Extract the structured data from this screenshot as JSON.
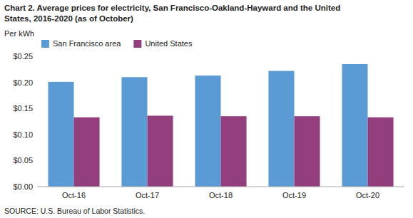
{
  "chart_data": {
    "type": "bar",
    "title": [
      "Chart 2. Average prices for electricity, San Francisco-Oakland-Hayward  and the United",
      "States, 2016-2020  (as of October)"
    ],
    "ylabel": "Per kWh",
    "source": "SOURCE: U.S. Bureau of Labor Statistics.",
    "categories": [
      "Oct-16",
      "Oct-17",
      "Oct-18",
      "Oct-19",
      "Oct-20"
    ],
    "series": [
      {
        "name": "San Francisco area",
        "color": "#5B9BD5",
        "values": [
          0.201,
          0.21,
          0.213,
          0.222,
          0.235
        ]
      },
      {
        "name": "United States",
        "color": "#943F7D",
        "values": [
          0.133,
          0.136,
          0.135,
          0.135,
          0.133
        ]
      }
    ],
    "ylim": [
      0,
      0.25
    ],
    "yticks": [
      {
        "value": 0.0,
        "label": "$0.00"
      },
      {
        "value": 0.05,
        "label": "$0.05"
      },
      {
        "value": 0.1,
        "label": "$0.10"
      },
      {
        "value": 0.15,
        "label": "$0.15"
      },
      {
        "value": 0.2,
        "label": "$0.20"
      },
      {
        "value": 0.25,
        "label": "$0.25"
      }
    ],
    "grid": false,
    "legend": "upper left"
  }
}
